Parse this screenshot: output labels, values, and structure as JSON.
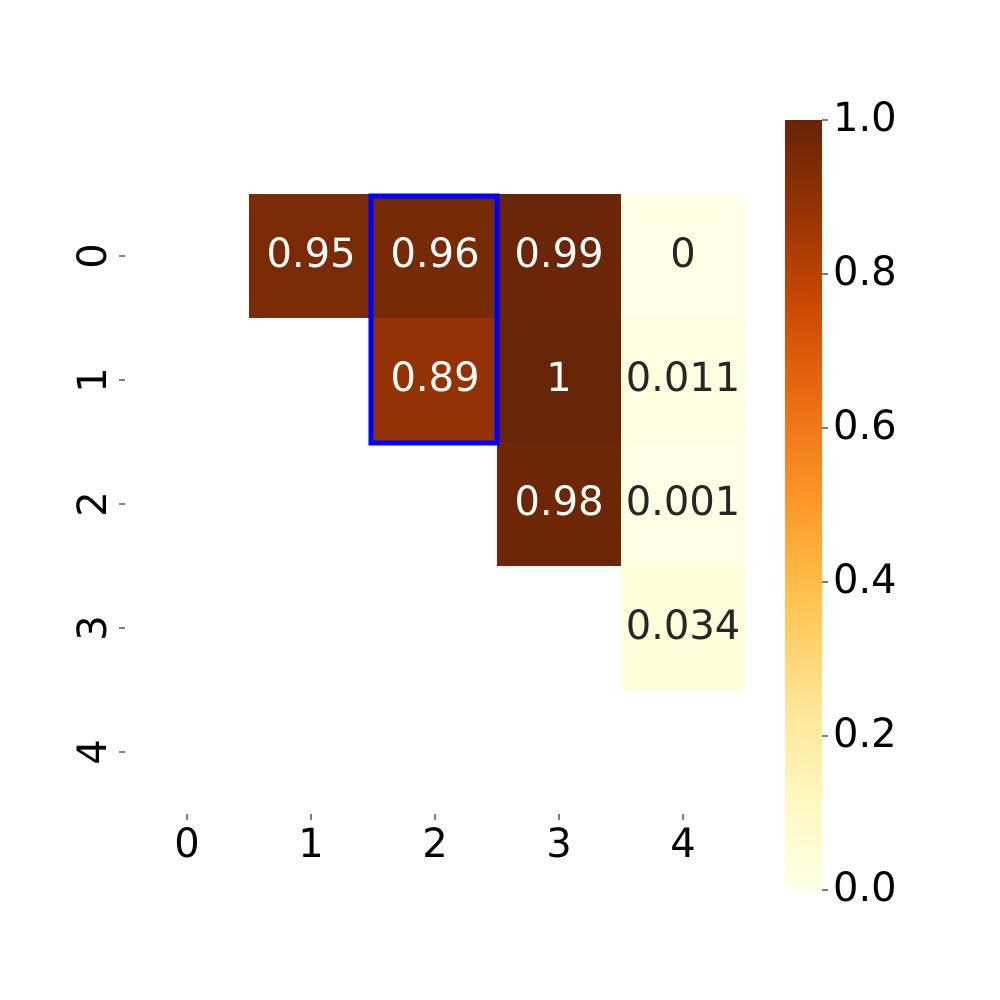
{
  "chart_data": {
    "type": "heatmap",
    "x": [
      "0",
      "1",
      "2",
      "3",
      "4"
    ],
    "y": [
      "0",
      "1",
      "2",
      "3",
      "4"
    ],
    "values": [
      [
        null,
        0.95,
        0.96,
        0.99,
        0
      ],
      [
        null,
        null,
        0.89,
        1,
        0.011
      ],
      [
        null,
        null,
        null,
        0.98,
        0.001
      ],
      [
        null,
        null,
        null,
        null,
        0.034
      ],
      [
        null,
        null,
        null,
        null,
        null
      ]
    ],
    "colormap": [
      "#ffffe5",
      "#fff7bc",
      "#fee391",
      "#fec44f",
      "#fe9929",
      "#ec7014",
      "#cc4c02",
      "#993404",
      "#662506"
    ],
    "clim": [
      0,
      1
    ],
    "cticks": [
      {
        "value": 0,
        "label": "0.0"
      },
      0.2,
      0.4,
      0.6,
      0.8,
      {
        "value": 1,
        "label": "1.0"
      }
    ],
    "highlight": {
      "col": 2,
      "rows": [
        0,
        1
      ],
      "color": "#0000ff"
    }
  }
}
